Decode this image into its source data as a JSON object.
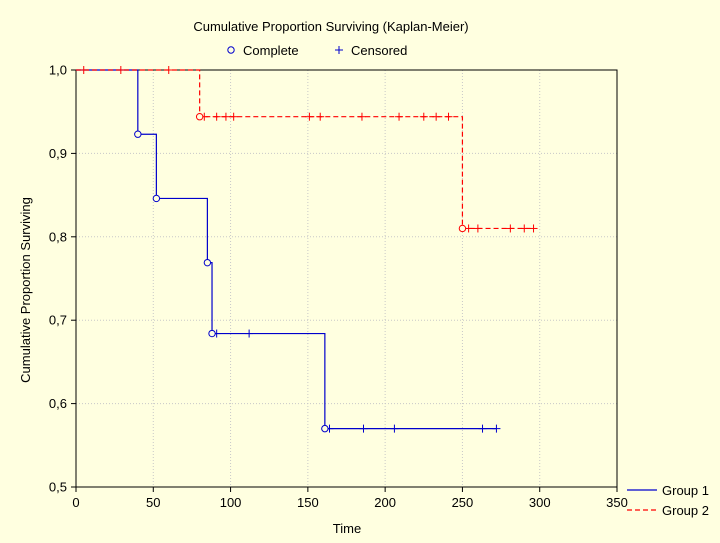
{
  "chart_data": {
    "type": "line",
    "title": "Cumulative Proportion Surviving (Kaplan-Meier)",
    "marker_legend": [
      {
        "label": "Complete",
        "marker": "circle"
      },
      {
        "label": "Censored",
        "marker": "plus"
      }
    ],
    "xlabel": "Time",
    "ylabel": "Cumulative Proportion Surviving",
    "xlim": [
      0,
      350
    ],
    "ylim": [
      0.5,
      1.0
    ],
    "xticks": [
      0,
      50,
      100,
      150,
      200,
      250,
      300,
      350
    ],
    "xtick_labels": [
      "0",
      "50",
      "100",
      "150",
      "200",
      "250",
      "300",
      "350"
    ],
    "yticks": [
      0.5,
      0.6,
      0.7,
      0.8,
      0.9,
      1.0
    ],
    "ytick_labels": [
      "0,5",
      "0,6",
      "0,7",
      "0,8",
      "0,9",
      "1,0"
    ],
    "grid": true,
    "legend_position": "bottom-right outside",
    "series": [
      {
        "name": "Group 1",
        "color": "#0000CC",
        "line_style": "solid",
        "steps": [
          [
            0,
            1.0
          ],
          [
            40,
            0.923
          ],
          [
            52,
            0.846
          ],
          [
            85,
            0.769
          ],
          [
            88,
            0.684
          ],
          [
            161,
            0.57
          ]
        ],
        "end_x": 272,
        "complete": [
          [
            40,
            0.923
          ],
          [
            52,
            0.846
          ],
          [
            85,
            0.769
          ],
          [
            88,
            0.684
          ],
          [
            161,
            0.57
          ]
        ],
        "censored": [
          [
            91,
            0.684
          ],
          [
            112,
            0.684
          ],
          [
            164,
            0.57
          ],
          [
            186,
            0.57
          ],
          [
            206,
            0.57
          ],
          [
            263,
            0.57
          ],
          [
            272,
            0.57
          ]
        ]
      },
      {
        "name": "Group 2",
        "color": "#FF0000",
        "line_style": "dashed",
        "steps": [
          [
            0,
            1.0
          ],
          [
            80,
            0.944
          ],
          [
            250,
            0.81
          ]
        ],
        "end_x": 296,
        "complete": [
          [
            80,
            0.944
          ],
          [
            250,
            0.81
          ]
        ],
        "censored": [
          [
            5,
            1.0
          ],
          [
            29,
            1.0
          ],
          [
            60,
            1.0
          ],
          [
            83,
            0.944
          ],
          [
            91,
            0.944
          ],
          [
            97,
            0.944
          ],
          [
            102,
            0.944
          ],
          [
            151,
            0.944
          ],
          [
            158,
            0.944
          ],
          [
            185,
            0.944
          ],
          [
            209,
            0.944
          ],
          [
            225,
            0.944
          ],
          [
            233,
            0.944
          ],
          [
            241,
            0.944
          ],
          [
            254,
            0.81
          ],
          [
            260,
            0.81
          ],
          [
            281,
            0.81
          ],
          [
            290,
            0.81
          ],
          [
            296,
            0.81
          ]
        ]
      }
    ]
  }
}
